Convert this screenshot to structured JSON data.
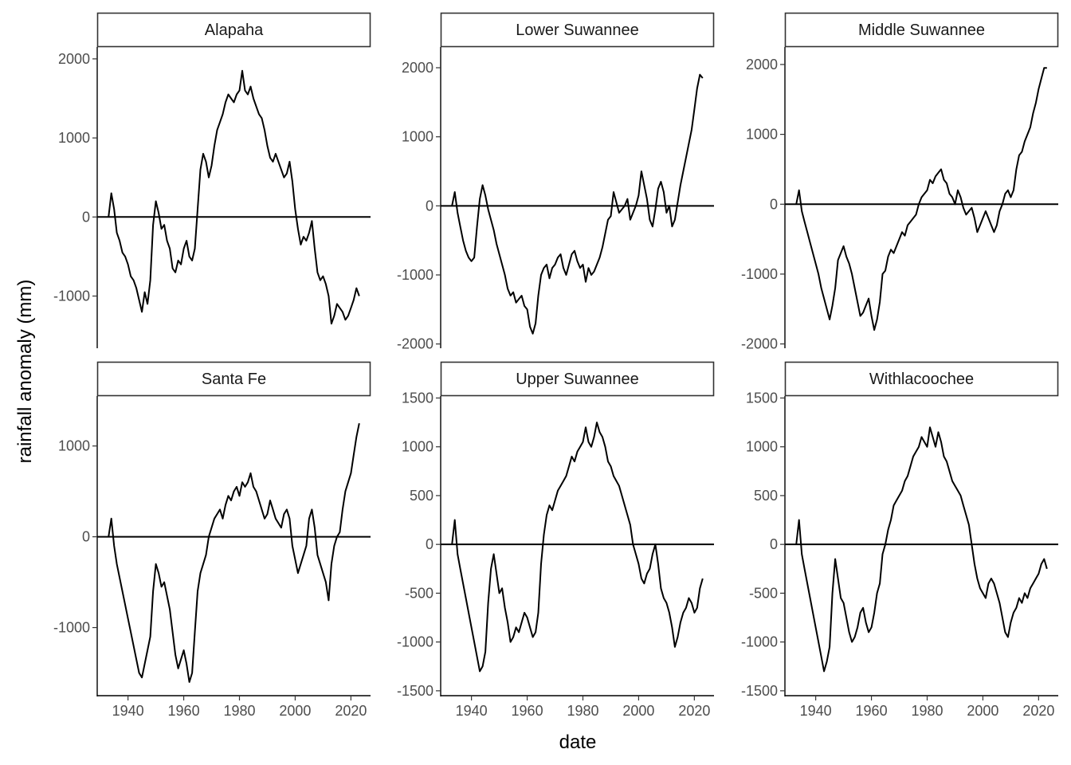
{
  "chart_data": {
    "type": "line",
    "xlabel": "date",
    "ylabel": "rainfall anomaly (mm)",
    "x_range": [
      1933,
      2023
    ],
    "x_ticks": [
      1940,
      1960,
      1980,
      2000,
      2020
    ],
    "reference_line_y": 0,
    "grid": false,
    "legend": "none",
    "line_color": "#000000",
    "panels": [
      {
        "name": "Alapaha",
        "ylim": [
          -1650,
          2150
        ],
        "y_ticks": [
          -1000,
          0,
          1000,
          2000
        ],
        "x": [
          1933,
          1934,
          1935,
          1936,
          1937,
          1938,
          1939,
          1940,
          1941,
          1942,
          1943,
          1944,
          1945,
          1946,
          1947,
          1948,
          1949,
          1950,
          1951,
          1952,
          1953,
          1954,
          1955,
          1956,
          1957,
          1958,
          1959,
          1960,
          1961,
          1962,
          1963,
          1964,
          1965,
          1966,
          1967,
          1968,
          1969,
          1970,
          1971,
          1972,
          1973,
          1974,
          1975,
          1976,
          1977,
          1978,
          1979,
          1980,
          1981,
          1982,
          1983,
          1984,
          1985,
          1986,
          1987,
          1988,
          1989,
          1990,
          1991,
          1992,
          1993,
          1994,
          1995,
          1996,
          1997,
          1998,
          1999,
          2000,
          2001,
          2002,
          2003,
          2004,
          2005,
          2006,
          2007,
          2008,
          2009,
          2010,
          2011,
          2012,
          2013,
          2014,
          2015,
          2016,
          2017,
          2018,
          2019,
          2020,
          2021,
          2022,
          2023
        ],
        "y": [
          0,
          300,
          100,
          -200,
          -300,
          -450,
          -500,
          -600,
          -750,
          -800,
          -900,
          -1050,
          -1200,
          -950,
          -1100,
          -800,
          -100,
          200,
          50,
          -150,
          -100,
          -300,
          -400,
          -650,
          -700,
          -550,
          -600,
          -400,
          -300,
          -500,
          -550,
          -400,
          100,
          600,
          800,
          700,
          500,
          650,
          900,
          1100,
          1200,
          1300,
          1450,
          1550,
          1500,
          1450,
          1550,
          1600,
          1850,
          1600,
          1550,
          1650,
          1500,
          1400,
          1300,
          1250,
          1100,
          900,
          750,
          700,
          800,
          700,
          600,
          500,
          550,
          700,
          450,
          100,
          -150,
          -350,
          -250,
          -300,
          -200,
          -50,
          -400,
          -700,
          -800,
          -750,
          -850,
          -1000,
          -1350,
          -1250,
          -1100,
          -1150,
          -1200,
          -1300,
          -1250,
          -1150,
          -1050,
          -900,
          -1000
        ]
      },
      {
        "name": "Lower Suwannee",
        "ylim": [
          -2050,
          2300
        ],
        "y_ticks": [
          -2000,
          -1000,
          0,
          1000,
          2000
        ],
        "x": [
          1933,
          1934,
          1935,
          1936,
          1937,
          1938,
          1939,
          1940,
          1941,
          1942,
          1943,
          1944,
          1945,
          1946,
          1947,
          1948,
          1949,
          1950,
          1951,
          1952,
          1953,
          1954,
          1955,
          1956,
          1957,
          1958,
          1959,
          1960,
          1961,
          1962,
          1963,
          1964,
          1965,
          1966,
          1967,
          1968,
          1969,
          1970,
          1971,
          1972,
          1973,
          1974,
          1975,
          1976,
          1977,
          1978,
          1979,
          1980,
          1981,
          1982,
          1983,
          1984,
          1985,
          1986,
          1987,
          1988,
          1989,
          1990,
          1991,
          1992,
          1993,
          1994,
          1995,
          1996,
          1997,
          1998,
          1999,
          2000,
          2001,
          2002,
          2003,
          2004,
          2005,
          2006,
          2007,
          2008,
          2009,
          2010,
          2011,
          2012,
          2013,
          2014,
          2015,
          2016,
          2017,
          2018,
          2019,
          2020,
          2021,
          2022,
          2023
        ],
        "y": [
          0,
          200,
          -100,
          -300,
          -500,
          -650,
          -750,
          -800,
          -750,
          -300,
          100,
          300,
          150,
          -50,
          -200,
          -350,
          -550,
          -700,
          -850,
          -1000,
          -1200,
          -1300,
          -1250,
          -1400,
          -1350,
          -1300,
          -1450,
          -1500,
          -1750,
          -1850,
          -1700,
          -1300,
          -1000,
          -900,
          -850,
          -1050,
          -900,
          -850,
          -750,
          -700,
          -900,
          -1000,
          -850,
          -700,
          -650,
          -800,
          -900,
          -850,
          -1100,
          -900,
          -1000,
          -950,
          -850,
          -750,
          -600,
          -400,
          -200,
          -150,
          200,
          50,
          -100,
          -50,
          0,
          100,
          -200,
          -100,
          0,
          150,
          500,
          300,
          100,
          -200,
          -300,
          -50,
          250,
          350,
          200,
          -100,
          0,
          -300,
          -200,
          50,
          300,
          500,
          700,
          900,
          1100,
          1400,
          1700,
          1900,
          1850
        ]
      },
      {
        "name": "Middle Suwannee",
        "ylim": [
          -2050,
          2250
        ],
        "y_ticks": [
          -2000,
          -1000,
          0,
          1000,
          2000
        ],
        "x": [
          1933,
          1934,
          1935,
          1936,
          1937,
          1938,
          1939,
          1940,
          1941,
          1942,
          1943,
          1944,
          1945,
          1946,
          1947,
          1948,
          1949,
          1950,
          1951,
          1952,
          1953,
          1954,
          1955,
          1956,
          1957,
          1958,
          1959,
          1960,
          1961,
          1962,
          1963,
          1964,
          1965,
          1966,
          1967,
          1968,
          1969,
          1970,
          1971,
          1972,
          1973,
          1974,
          1975,
          1976,
          1977,
          1978,
          1979,
          1980,
          1981,
          1982,
          1983,
          1984,
          1985,
          1986,
          1987,
          1988,
          1989,
          1990,
          1991,
          1992,
          1993,
          1994,
          1995,
          1996,
          1997,
          1998,
          1999,
          2000,
          2001,
          2002,
          2003,
          2004,
          2005,
          2006,
          2007,
          2008,
          2009,
          2010,
          2011,
          2012,
          2013,
          2014,
          2015,
          2016,
          2017,
          2018,
          2019,
          2020,
          2021,
          2022,
          2023
        ],
        "y": [
          0,
          200,
          -100,
          -250,
          -400,
          -550,
          -700,
          -850,
          -1000,
          -1200,
          -1350,
          -1500,
          -1650,
          -1450,
          -1200,
          -800,
          -700,
          -600,
          -750,
          -850,
          -1000,
          -1200,
          -1400,
          -1600,
          -1550,
          -1450,
          -1350,
          -1600,
          -1800,
          -1650,
          -1400,
          -1000,
          -950,
          -750,
          -650,
          -700,
          -600,
          -500,
          -400,
          -450,
          -300,
          -250,
          -200,
          -150,
          0,
          100,
          150,
          200,
          350,
          300,
          400,
          450,
          500,
          350,
          300,
          150,
          100,
          0,
          200,
          100,
          -50,
          -150,
          -100,
          -50,
          -200,
          -400,
          -300,
          -200,
          -100,
          -200,
          -300,
          -400,
          -300,
          -100,
          0,
          150,
          200,
          100,
          200,
          500,
          700,
          750,
          900,
          1000,
          1100,
          1300,
          1450,
          1650,
          1800,
          1950,
          1950
        ]
      },
      {
        "name": "Santa Fe",
        "ylim": [
          -1750,
          1550
        ],
        "y_ticks": [
          -1000,
          0,
          1000
        ],
        "x": [
          1933,
          1934,
          1935,
          1936,
          1937,
          1938,
          1939,
          1940,
          1941,
          1942,
          1943,
          1944,
          1945,
          1946,
          1947,
          1948,
          1949,
          1950,
          1951,
          1952,
          1953,
          1954,
          1955,
          1956,
          1957,
          1958,
          1959,
          1960,
          1961,
          1962,
          1963,
          1964,
          1965,
          1966,
          1967,
          1968,
          1969,
          1970,
          1971,
          1972,
          1973,
          1974,
          1975,
          1976,
          1977,
          1978,
          1979,
          1980,
          1981,
          1982,
          1983,
          1984,
          1985,
          1986,
          1987,
          1988,
          1989,
          1990,
          1991,
          1992,
          1993,
          1994,
          1995,
          1996,
          1997,
          1998,
          1999,
          2000,
          2001,
          2002,
          2003,
          2004,
          2005,
          2006,
          2007,
          2008,
          2009,
          2010,
          2011,
          2012,
          2013,
          2014,
          2015,
          2016,
          2017,
          2018,
          2019,
          2020,
          2021,
          2022,
          2023
        ],
        "y": [
          0,
          200,
          -100,
          -300,
          -450,
          -600,
          -750,
          -900,
          -1050,
          -1200,
          -1350,
          -1500,
          -1550,
          -1400,
          -1250,
          -1100,
          -600,
          -300,
          -400,
          -550,
          -500,
          -650,
          -800,
          -1050,
          -1300,
          -1450,
          -1350,
          -1250,
          -1400,
          -1600,
          -1500,
          -1050,
          -600,
          -400,
          -300,
          -200,
          0,
          100,
          200,
          250,
          300,
          200,
          350,
          450,
          400,
          500,
          550,
          450,
          600,
          550,
          600,
          700,
          550,
          500,
          400,
          300,
          200,
          250,
          400,
          300,
          200,
          150,
          100,
          250,
          300,
          200,
          -100,
          -250,
          -400,
          -300,
          -200,
          -100,
          200,
          300,
          100,
          -200,
          -300,
          -400,
          -500,
          -700,
          -300,
          -100,
          0,
          50,
          300,
          500,
          600,
          700,
          900,
          1100,
          1250
        ]
      },
      {
        "name": "Upper Suwannee",
        "ylim": [
          -1550,
          1520
        ],
        "y_ticks": [
          -1500,
          -1000,
          -500,
          0,
          500,
          1000,
          1500
        ],
        "x": [
          1933,
          1934,
          1935,
          1936,
          1937,
          1938,
          1939,
          1940,
          1941,
          1942,
          1943,
          1944,
          1945,
          1946,
          1947,
          1948,
          1949,
          1950,
          1951,
          1952,
          1953,
          1954,
          1955,
          1956,
          1957,
          1958,
          1959,
          1960,
          1961,
          1962,
          1963,
          1964,
          1965,
          1966,
          1967,
          1968,
          1969,
          1970,
          1971,
          1972,
          1973,
          1974,
          1975,
          1976,
          1977,
          1978,
          1979,
          1980,
          1981,
          1982,
          1983,
          1984,
          1985,
          1986,
          1987,
          1988,
          1989,
          1990,
          1991,
          1992,
          1993,
          1994,
          1995,
          1996,
          1997,
          1998,
          1999,
          2000,
          2001,
          2002,
          2003,
          2004,
          2005,
          2006,
          2007,
          2008,
          2009,
          2010,
          2011,
          2012,
          2013,
          2014,
          2015,
          2016,
          2017,
          2018,
          2019,
          2020,
          2021,
          2022,
          2023
        ],
        "y": [
          0,
          250,
          -100,
          -250,
          -400,
          -550,
          -700,
          -850,
          -1000,
          -1150,
          -1300,
          -1250,
          -1100,
          -600,
          -250,
          -100,
          -300,
          -500,
          -450,
          -650,
          -800,
          -1000,
          -950,
          -850,
          -900,
          -800,
          -700,
          -750,
          -850,
          -950,
          -900,
          -700,
          -200,
          100,
          300,
          400,
          350,
          450,
          550,
          600,
          650,
          700,
          800,
          900,
          850,
          950,
          1000,
          1050,
          1200,
          1050,
          1000,
          1100,
          1250,
          1150,
          1100,
          1000,
          850,
          800,
          700,
          650,
          600,
          500,
          400,
          300,
          200,
          0,
          -100,
          -200,
          -350,
          -400,
          -300,
          -250,
          -100,
          0,
          -200,
          -450,
          -550,
          -600,
          -700,
          -850,
          -1050,
          -950,
          -800,
          -700,
          -650,
          -550,
          -600,
          -700,
          -650,
          -450,
          -350
        ]
      },
      {
        "name": "Withlacoochee",
        "ylim": [
          -1550,
          1520
        ],
        "y_ticks": [
          -1500,
          -1000,
          -500,
          0,
          500,
          1000,
          1500
        ],
        "x": [
          1933,
          1934,
          1935,
          1936,
          1937,
          1938,
          1939,
          1940,
          1941,
          1942,
          1943,
          1944,
          1945,
          1946,
          1947,
          1948,
          1949,
          1950,
          1951,
          1952,
          1953,
          1954,
          1955,
          1956,
          1957,
          1958,
          1959,
          1960,
          1961,
          1962,
          1963,
          1964,
          1965,
          1966,
          1967,
          1968,
          1969,
          1970,
          1971,
          1972,
          1973,
          1974,
          1975,
          1976,
          1977,
          1978,
          1979,
          1980,
          1981,
          1982,
          1983,
          1984,
          1985,
          1986,
          1987,
          1988,
          1989,
          1990,
          1991,
          1992,
          1993,
          1994,
          1995,
          1996,
          1997,
          1998,
          1999,
          2000,
          2001,
          2002,
          2003,
          2004,
          2005,
          2006,
          2007,
          2008,
          2009,
          2010,
          2011,
          2012,
          2013,
          2014,
          2015,
          2016,
          2017,
          2018,
          2019,
          2020,
          2021,
          2022,
          2023
        ],
        "y": [
          0,
          250,
          -100,
          -250,
          -400,
          -550,
          -700,
          -850,
          -1000,
          -1150,
          -1300,
          -1200,
          -1050,
          -500,
          -150,
          -350,
          -550,
          -600,
          -750,
          -900,
          -1000,
          -950,
          -850,
          -700,
          -650,
          -800,
          -900,
          -850,
          -700,
          -500,
          -400,
          -100,
          0,
          150,
          250,
          400,
          450,
          500,
          550,
          650,
          700,
          800,
          900,
          950,
          1000,
          1100,
          1050,
          1000,
          1200,
          1100,
          1000,
          1150,
          1050,
          900,
          850,
          750,
          650,
          600,
          550,
          500,
          400,
          300,
          200,
          0,
          -200,
          -350,
          -450,
          -500,
          -550,
          -400,
          -350,
          -400,
          -500,
          -600,
          -750,
          -900,
          -950,
          -800,
          -700,
          -650,
          -550,
          -600,
          -500,
          -550,
          -450,
          -400,
          -350,
          -300,
          -200,
          -150,
          -250
        ]
      }
    ]
  }
}
